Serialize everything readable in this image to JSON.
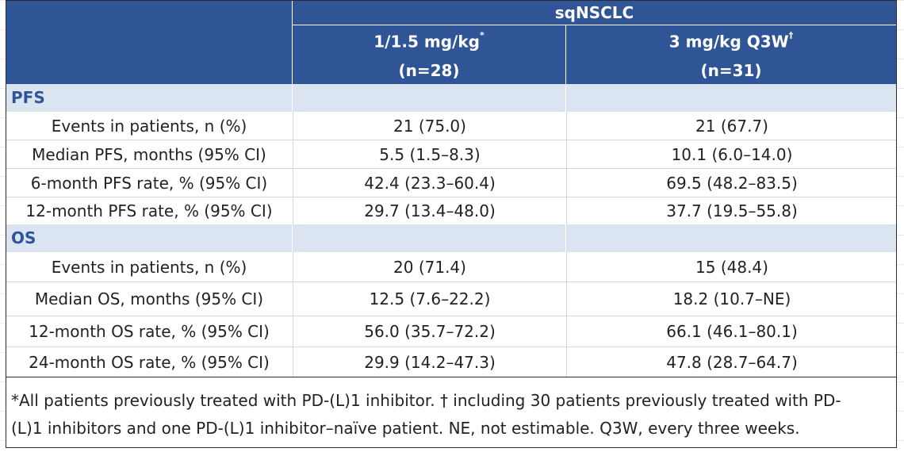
{
  "table": {
    "group_header": "sqNSCLC",
    "columns": [
      {
        "label": "1/1.5 mg/kg",
        "mark": "*",
        "n": "(n=28)"
      },
      {
        "label": "3 mg/kg Q3W",
        "mark": "†",
        "n": "(n=31)"
      }
    ],
    "sections": [
      {
        "title": "PFS",
        "rows": [
          {
            "label": "Events in patients, n (%)",
            "values": [
              "21 (75.0)",
              "21 (67.7)"
            ]
          },
          {
            "label": "Median PFS, months (95% CI)",
            "values": [
              "5.5 (1.5–8.3)",
              "10.1 (6.0–14.0)"
            ]
          },
          {
            "label": "6-month PFS rate, % (95% CI)",
            "values": [
              "42.4 (23.3–60.4)",
              "69.5 (48.2–83.5)"
            ]
          },
          {
            "label": "12-month PFS rate, % (95% CI)",
            "values": [
              "29.7 (13.4–48.0)",
              "37.7 (19.5–55.8)"
            ]
          }
        ]
      },
      {
        "title": "OS",
        "rows": [
          {
            "label": "Events in patients, n (%)",
            "values": [
              "20 (71.4)",
              "15 (48.4)"
            ]
          },
          {
            "label": "Median OS, months (95% CI)",
            "values": [
              "12.5 (7.6–22.2)",
              "18.2 (10.7–NE)"
            ]
          },
          {
            "label": "12-month OS rate, % (95% CI)",
            "values": [
              "56.0 (35.7–72.2)",
              "66.1 (46.1–80.1)"
            ]
          },
          {
            "label": "24-month OS rate, % (95% CI)",
            "values": [
              "29.9 (14.2–47.3)",
              "47.8 (28.7–64.7)"
            ]
          }
        ]
      }
    ],
    "footnote_lines": [
      "*All patients previously treated with PD-(L)1 inhibitor. † including 30 patients previously treated with PD-",
      "(L)1 inhibitors and one PD-(L)1 inhibitor–naïve patient. NE, not estimable. Q3W, every three weeks."
    ]
  },
  "colors": {
    "header_bg": "#2f5597",
    "section_bg": "#dbe5f1",
    "section_text": "#2f5597"
  }
}
